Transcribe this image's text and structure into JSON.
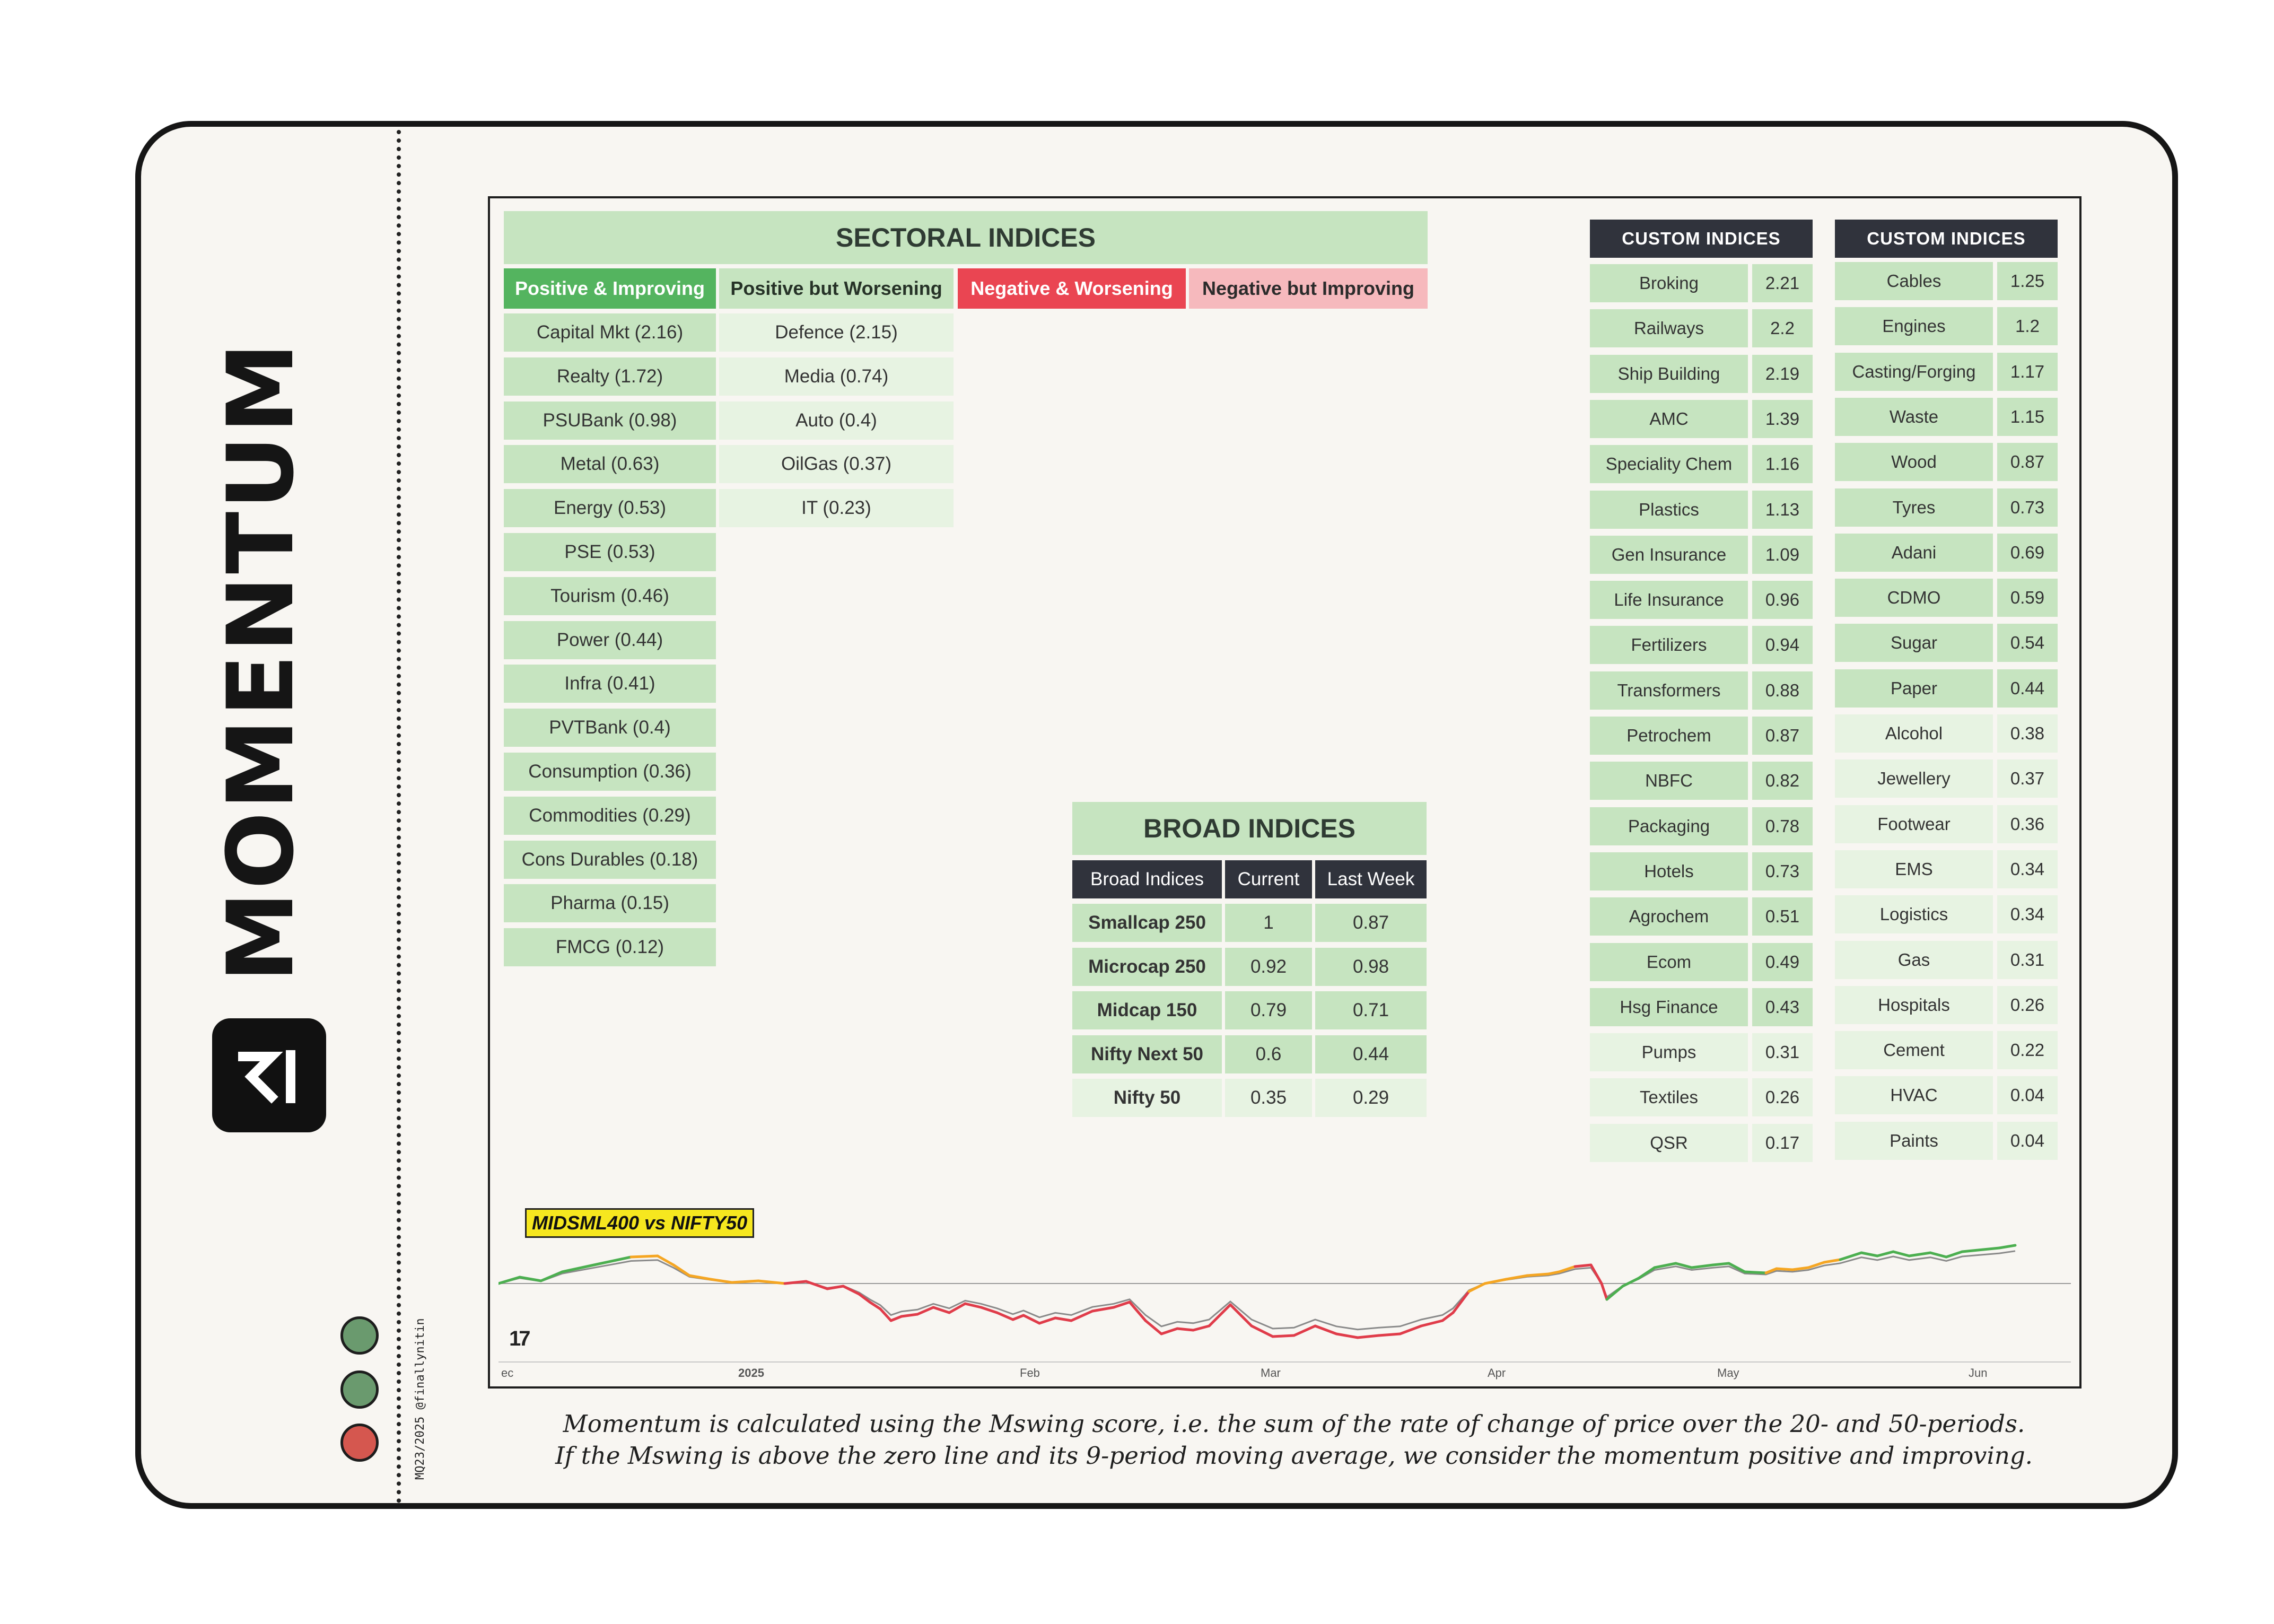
{
  "brand": {
    "title": "MOMENTUM",
    "credit": "MQ23/2025 @finallynitin"
  },
  "sectoral": {
    "title": "SECTORAL INDICES",
    "headers": [
      "Positive & Improving",
      "Positive but Worsening",
      "Negative & Worsening",
      "Negative but Improving"
    ],
    "header_colors": [
      "#54b45f",
      "#c6e4c0",
      "#ea4552",
      "#f6b9bd"
    ],
    "positive_improving": [
      "Capital Mkt (2.16)",
      "Realty (1.72)",
      "PSUBank (0.98)",
      "Metal (0.63)",
      "Energy (0.53)",
      "PSE (0.53)",
      "Tourism (0.46)",
      "Power (0.44)",
      "Infra (0.41)",
      "PVTBank (0.4)",
      "Consumption (0.36)",
      "Commodities (0.29)",
      "Cons Durables (0.18)",
      "Pharma (0.15)",
      "FMCG (0.12)"
    ],
    "positive_worsening": [
      "Defence (2.15)",
      "Media (0.74)",
      "Auto (0.4)",
      "OilGas (0.37)",
      "IT (0.23)"
    ],
    "negative_worsening": [],
    "negative_improving": []
  },
  "broad": {
    "title": "BROAD INDICES",
    "headers": [
      "Broad Indices",
      "Current",
      "Last Week"
    ],
    "rows": [
      {
        "name": "Smallcap 250",
        "current": "1",
        "last": "0.87"
      },
      {
        "name": "Microcap 250",
        "current": "0.92",
        "last": "0.98"
      },
      {
        "name": "Midcap 150",
        "current": "0.79",
        "last": "0.71"
      },
      {
        "name": "Nifty Next 50",
        "current": "0.6",
        "last": "0.44"
      },
      {
        "name": "Nifty 50",
        "current": "0.35",
        "last": "0.29"
      }
    ]
  },
  "custom1": {
    "title": "CUSTOM INDICES",
    "rows": [
      {
        "name": "Broking",
        "value": "2.21"
      },
      {
        "name": "Railways",
        "value": "2.2"
      },
      {
        "name": "Ship Building",
        "value": "2.19"
      },
      {
        "name": "AMC",
        "value": "1.39"
      },
      {
        "name": "Speciality Chem",
        "value": "1.16"
      },
      {
        "name": "Plastics",
        "value": "1.13"
      },
      {
        "name": "Gen Insurance",
        "value": "1.09"
      },
      {
        "name": "Life Insurance",
        "value": "0.96"
      },
      {
        "name": "Fertilizers",
        "value": "0.94"
      },
      {
        "name": "Transformers",
        "value": "0.88"
      },
      {
        "name": "Petrochem",
        "value": "0.87"
      },
      {
        "name": "NBFC",
        "value": "0.82"
      },
      {
        "name": "Packaging",
        "value": "0.78"
      },
      {
        "name": "Hotels",
        "value": "0.73"
      },
      {
        "name": "Agrochem",
        "value": "0.51"
      },
      {
        "name": "Ecom",
        "value": "0.49"
      },
      {
        "name": "Hsg Finance",
        "value": "0.43"
      },
      {
        "name": "Pumps",
        "value": "0.31"
      },
      {
        "name": "Textiles",
        "value": "0.26"
      },
      {
        "name": "QSR",
        "value": "0.17"
      }
    ]
  },
  "custom2": {
    "title": "CUSTOM INDICES",
    "rows": [
      {
        "name": "Cables",
        "value": "1.25"
      },
      {
        "name": "Engines",
        "value": "1.2"
      },
      {
        "name": "Casting/Forging",
        "value": "1.17"
      },
      {
        "name": "Waste",
        "value": "1.15"
      },
      {
        "name": "Wood",
        "value": "0.87"
      },
      {
        "name": "Tyres",
        "value": "0.73"
      },
      {
        "name": "Adani",
        "value": "0.69"
      },
      {
        "name": "CDMO",
        "value": "0.59"
      },
      {
        "name": "Sugar",
        "value": "0.54"
      },
      {
        "name": "Paper",
        "value": "0.44"
      },
      {
        "name": "Alcohol",
        "value": "0.38"
      },
      {
        "name": "Jewellery",
        "value": "0.37"
      },
      {
        "name": "Footwear",
        "value": "0.36"
      },
      {
        "name": "EMS",
        "value": "0.34"
      },
      {
        "name": "Logistics",
        "value": "0.34"
      },
      {
        "name": "Gas",
        "value": "0.31"
      },
      {
        "name": "Hospitals",
        "value": "0.26"
      },
      {
        "name": "Cement",
        "value": "0.22"
      },
      {
        "name": "HVAC",
        "value": "0.04"
      },
      {
        "name": "Paints",
        "value": "0.04"
      }
    ]
  },
  "chart": {
    "label": "MIDSML400 vs NIFTY50",
    "months": [
      "ec",
      "2025",
      "Feb",
      "Mar",
      "Apr",
      "May",
      "Jun"
    ],
    "colors": {
      "positive_improving": "#4caf50",
      "positive_worsening": "#f5a623",
      "negative": "#e03c4a",
      "average": "#8a8a8a",
      "zero": "#9a9a9a"
    }
  },
  "footer": {
    "line1": "Momentum is calculated using the Mswing score, i.e. the sum of the rate of change of price over the 20- and 50-periods.",
    "line2": "If the Mswing is above the zero line and its 9-period moving average, we consider the momentum positive and improving."
  },
  "status_dots": [
    "#6a9a6e",
    "#6a9a6e",
    "#d5574f"
  ]
}
